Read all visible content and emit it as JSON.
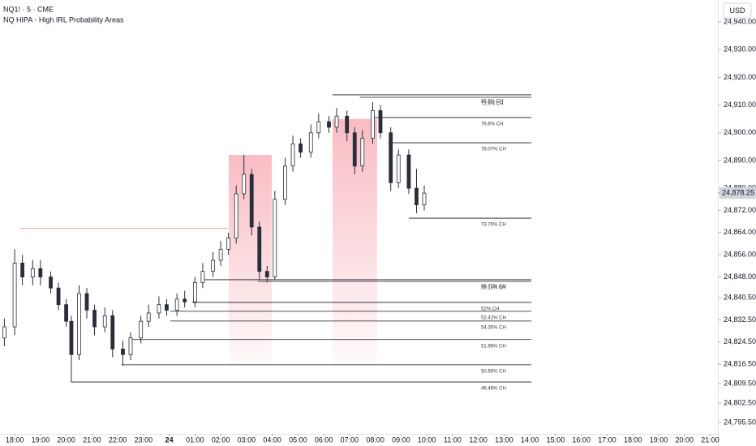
{
  "chart_data": {
    "type": "candlestick",
    "title": "NQ1! · 5 · CME",
    "subtitle": "NQ HIPA - High IRL Probability Areas",
    "currency": "USD",
    "xlim": [
      -0.57,
      27.3
    ],
    "ylim": [
      24791.4,
      24947.9
    ],
    "xticks": [
      {
        "value": 0,
        "label": "18:00"
      },
      {
        "value": 1,
        "label": "19:00"
      },
      {
        "value": 2,
        "label": "20:00"
      },
      {
        "value": 3,
        "label": "21:00"
      },
      {
        "value": 4,
        "label": "22:00"
      },
      {
        "value": 5,
        "label": "23:00"
      },
      {
        "value": 6,
        "label": "24"
      },
      {
        "value": 7,
        "label": "01:00"
      },
      {
        "value": 8,
        "label": "02:00"
      },
      {
        "value": 9,
        "label": "03:00"
      },
      {
        "value": 10,
        "label": "04:00"
      },
      {
        "value": 11,
        "label": "05:00"
      },
      {
        "value": 12,
        "label": "06:00"
      },
      {
        "value": 13,
        "label": "07:00"
      },
      {
        "value": 14,
        "label": "08:00"
      },
      {
        "value": 15,
        "label": "09:00"
      },
      {
        "value": 16,
        "label": "10:00"
      },
      {
        "value": 17,
        "label": "11:00"
      },
      {
        "value": 18,
        "label": "12:00"
      },
      {
        "value": 19,
        "label": "13:00"
      },
      {
        "value": 20,
        "label": "14:00"
      },
      {
        "value": 21,
        "label": "15:00"
      },
      {
        "value": 22,
        "label": "16:00"
      },
      {
        "value": 23,
        "label": "17:00"
      },
      {
        "value": 24,
        "label": "18:00"
      },
      {
        "value": 25,
        "label": "19:00"
      },
      {
        "value": 26,
        "label": "20:00"
      },
      {
        "value": 27,
        "label": "21:00"
      }
    ],
    "yticks": [
      {
        "value": 24940,
        "label": "24,940.00"
      },
      {
        "value": 24930,
        "label": "24,930.00"
      },
      {
        "value": 24920,
        "label": "24,920.00"
      },
      {
        "value": 24910,
        "label": "24,910.00"
      },
      {
        "value": 24900,
        "label": "24,900.00"
      },
      {
        "value": 24890,
        "label": "24,890.00"
      },
      {
        "value": 24880,
        "label": "24,880.00"
      },
      {
        "value": 24872,
        "label": "24,872.00"
      },
      {
        "value": 24864,
        "label": "24,864.00"
      },
      {
        "value": 24856,
        "label": "24,856.00"
      },
      {
        "value": 24848,
        "label": "24,848.00"
      },
      {
        "value": 24840.5,
        "label": "24,840.50"
      },
      {
        "value": 24832.5,
        "label": "24,832.50"
      },
      {
        "value": 24824.5,
        "label": "24,824.50"
      },
      {
        "value": 24816.5,
        "label": "24,816.50"
      },
      {
        "value": 24809.5,
        "label": "24,809.50"
      },
      {
        "value": 24802.5,
        "label": "24,802.50"
      },
      {
        "value": 24795.5,
        "label": "24,795.50"
      }
    ],
    "color": "#2a2e39",
    "x": [
      -0.4,
      0.0,
      0.3,
      0.7,
      1.0,
      1.4,
      1.7,
      2.0,
      2.2,
      2.5,
      2.8,
      3.1,
      3.5,
      3.8,
      4.2,
      4.5,
      4.9,
      5.2,
      5.6,
      5.9,
      6.3,
      6.6,
      7.0,
      7.3,
      7.7,
      8.0,
      8.3,
      8.6,
      8.9,
      9.2,
      9.5,
      9.8,
      10.1,
      10.5,
      10.8,
      11.1,
      11.5,
      11.8,
      12.2,
      12.5,
      12.9,
      13.2,
      13.5,
      13.9,
      14.2,
      14.6,
      14.9,
      15.3,
      15.6,
      15.9
    ],
    "open": [
      24826,
      24830,
      24853,
      24848,
      24851,
      24848,
      24844,
      24838,
      24832,
      24820,
      24842,
      24836,
      24830,
      24834,
      24822,
      24820,
      24826,
      24832,
      24835,
      24838,
      24836,
      24840,
      24839,
      24846,
      24850,
      24854,
      24858,
      24862,
      24878,
      24885,
      24866,
      24850,
      24848,
      24876,
      24888,
      24896,
      24893,
      24900,
      24904,
      24902,
      24906,
      24900,
      24888,
      24898,
      24908,
      24900,
      24882,
      24892,
      24880,
      24874
    ],
    "high": [
      24833,
      24858,
      24856,
      24854,
      24854,
      24850,
      24846,
      24840,
      24834,
      24845,
      24844,
      24838,
      24837,
      24836,
      24825,
      24828,
      24834,
      24838,
      24841,
      24840,
      24842,
      24843,
      24848,
      24853,
      24857,
      24861,
      24864,
      24881,
      24892,
      24887,
      24868,
      24852,
      24879,
      24891,
      24899,
      24898,
      24903,
      24907,
      24906,
      24909,
      24908,
      24902,
      24901,
      24911,
      24910,
      24902,
      24894,
      24894,
      24887,
      24881
    ],
    "low": [
      24823,
      24827,
      24845,
      24845,
      24845,
      24842,
      24836,
      24830,
      24810,
      24818,
      24833,
      24827,
      24828,
      24819,
      24816,
      24818,
      24824,
      24830,
      24833,
      24834,
      24834,
      24837,
      24837,
      24844,
      24848,
      24852,
      24856,
      24860,
      24876,
      24863,
      24847,
      24846,
      24847,
      24874,
      24886,
      24891,
      24891,
      24898,
      24900,
      24900,
      24897,
      24885,
      24886,
      24896,
      24898,
      24879,
      24880,
      24878,
      24871,
      24872
    ],
    "close": [
      24830,
      24853,
      24848,
      24851,
      24848,
      24844,
      24838,
      24832,
      24820,
      24842,
      24836,
      24830,
      24834,
      24822,
      24820,
      24826,
      24832,
      24835,
      24838,
      24836,
      24840,
      24839,
      24846,
      24850,
      24854,
      24858,
      24862,
      24878,
      24885,
      24866,
      24850,
      24848,
      24876,
      24888,
      24896,
      24893,
      24900,
      24904,
      24902,
      24906,
      24900,
      24888,
      24898,
      24908,
      24900,
      24882,
      24892,
      24880,
      24874,
      24878.25
    ],
    "last_price": {
      "value": 24878.25,
      "label": "24,878.25"
    },
    "zones": [
      {
        "x0": 8.31,
        "x1": 9.98,
        "top": 24892,
        "bottom": 24816
      },
      {
        "x0": 12.34,
        "x1": 14.07,
        "top": 24905,
        "bottom": 24816
      }
    ],
    "extension": {
      "price": 24865.5,
      "x0": 0.2,
      "x1": 8.3,
      "color": "#f23645"
    },
    "level_end": 20.06,
    "levels": [
      {
        "price": 24913.7,
        "x0": 12.34,
        "label": "85.9% CH"
      },
      {
        "price": 24912.8,
        "x0": 13.4,
        "label": "72.9% CH"
      },
      {
        "price": 24905.5,
        "x0": 13.9,
        "label": "76.6% CH"
      },
      {
        "price": 24896.4,
        "x0": 14.5,
        "label": "78.07% CH"
      },
      {
        "price": 24869.2,
        "x0": 15.3,
        "label": "73.76% CH"
      },
      {
        "price": 24847.0,
        "x0": 7.36,
        "label": "86.72% CH"
      },
      {
        "price": 24846.4,
        "x0": 9.43,
        "label": "55.11% CH"
      },
      {
        "price": 24838.8,
        "x0": 6.9,
        "label": "52% CH"
      },
      {
        "price": 24835.6,
        "x0": 6.04,
        "label": "52.42% CH"
      },
      {
        "price": 24832.1,
        "x0": 6.04,
        "label": "54.35% CH"
      },
      {
        "price": 24825.4,
        "x0": 4.47,
        "label": "51.96% CH"
      },
      {
        "price": 24816.3,
        "x0": 4.15,
        "label": "50.66% CH"
      },
      {
        "price": 24810.1,
        "x0": 2.2,
        "label": "46.46% CH"
      }
    ]
  }
}
